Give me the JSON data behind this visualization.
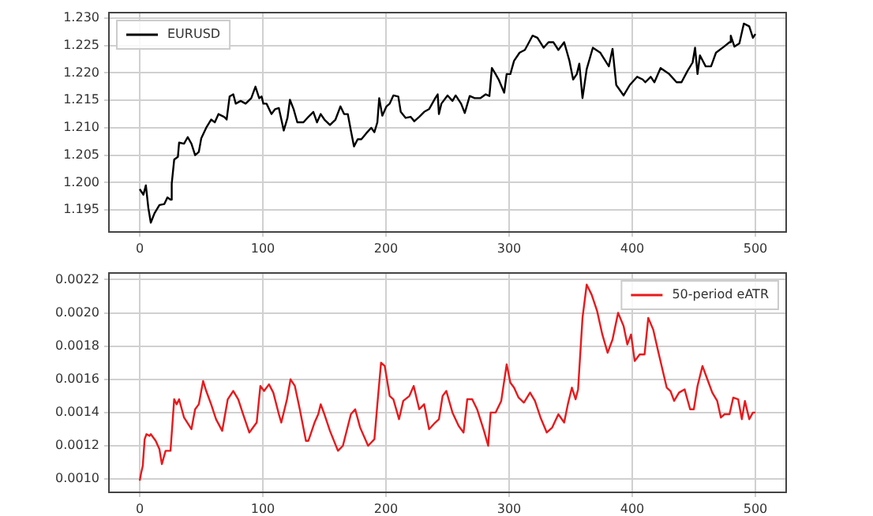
{
  "chart_data": [
    {
      "type": "line",
      "xlim": [
        -25,
        525
      ],
      "xticks": [
        0,
        100,
        200,
        300,
        400,
        500
      ],
      "ylim": [
        1.191,
        1.231
      ],
      "yticks": [
        1.195,
        {
          "value": 1.2,
          "label": "1.200"
        },
        1.205,
        {
          "value": 1.21,
          "label": "1.210"
        },
        1.215,
        {
          "value": 1.22,
          "label": "1.220"
        },
        1.225,
        {
          "value": 1.23,
          "label": "1.230"
        }
      ],
      "grid": true,
      "legend": "top left",
      "line_style": "solid",
      "marker": "none",
      "series": [
        {
          "name": "EURUSD",
          "color": "#000000",
          "x": [
            0,
            3,
            5,
            7,
            9,
            12,
            16,
            20,
            22.5,
            25,
            26,
            28,
            31,
            32,
            36,
            39,
            42,
            45,
            48,
            50,
            54,
            58,
            61,
            64,
            68.5,
            70.6,
            73,
            76,
            78,
            82,
            86,
            90.6,
            94,
            97,
            99,
            100.4,
            103,
            107,
            110,
            113,
            117,
            120,
            122,
            125,
            128,
            133,
            137,
            141,
            144,
            147,
            150,
            154.5,
            159,
            163,
            166,
            169,
            171.5,
            174,
            177,
            180,
            184,
            188,
            190.6,
            193,
            194.5,
            197,
            200.4,
            203,
            206,
            210,
            212,
            216,
            220,
            223,
            227,
            231,
            235,
            240,
            242,
            243,
            245,
            250,
            254,
            256.6,
            261,
            264,
            268,
            272,
            276.6,
            281,
            284,
            286,
            289,
            291.5,
            296,
            298,
            301,
            304,
            308.5,
            312.8,
            315,
            319,
            323,
            328,
            332,
            336,
            340,
            344.7,
            349,
            352,
            355,
            357,
            359.6,
            363,
            368,
            374,
            381,
            384,
            387,
            393,
            398,
            404,
            408.5,
            410.6,
            415,
            418,
            423,
            430,
            436,
            440,
            444.7,
            449,
            451,
            453,
            455,
            459.6,
            464,
            468,
            474.5,
            479,
            480,
            483,
            487,
            490.6,
            495,
            498,
            500
          ],
          "values": [
            1.1988,
            1.1978,
            1.1995,
            1.1954,
            1.1927,
            1.1944,
            1.1959,
            1.1961,
            1.1973,
            1.1969,
            1.1998,
            1.2042,
            1.2047,
            1.2073,
            1.2071,
            1.2083,
            1.2071,
            1.205,
            1.2056,
            1.2081,
            1.21,
            1.2115,
            1.211,
            1.2125,
            1.212,
            1.2115,
            1.2157,
            1.2161,
            1.2144,
            1.2149,
            1.2144,
            1.2154,
            1.2175,
            1.2154,
            1.2157,
            1.2144,
            1.2144,
            1.2125,
            1.2134,
            1.2136,
            1.2095,
            1.2118,
            1.2151,
            1.2134,
            1.211,
            1.211,
            1.212,
            1.2129,
            1.211,
            1.2125,
            1.2115,
            1.2105,
            1.2115,
            1.2139,
            1.2125,
            1.2125,
            1.2095,
            1.2066,
            1.2079,
            1.2079,
            1.209,
            1.21,
            1.2092,
            1.211,
            1.2154,
            1.2122,
            1.2139,
            1.2144,
            1.2159,
            1.2157,
            1.2129,
            1.2118,
            1.212,
            1.2112,
            1.212,
            1.2129,
            1.2134,
            1.2154,
            1.2161,
            1.2125,
            1.2144,
            1.2159,
            1.2149,
            1.2159,
            1.2144,
            1.2127,
            1.2158,
            1.2154,
            1.2154,
            1.2161,
            1.2158,
            1.2209,
            1.2198,
            1.2188,
            1.2164,
            1.2198,
            1.2198,
            1.2222,
            1.2237,
            1.2242,
            1.2251,
            1.2268,
            1.2264,
            1.2246,
            1.2256,
            1.2256,
            1.2242,
            1.2256,
            1.2222,
            1.2188,
            1.2198,
            1.2217,
            1.2154,
            1.2207,
            1.2246,
            1.2237,
            1.2212,
            1.2244,
            1.2178,
            1.2159,
            1.2178,
            1.2193,
            1.2188,
            1.2183,
            1.2193,
            1.2183,
            1.2209,
            1.2198,
            1.2183,
            1.2183,
            1.2203,
            1.2219,
            1.2246,
            1.2198,
            1.2232,
            1.2212,
            1.2212,
            1.2237,
            1.2248,
            1.2256,
            1.2268,
            1.2248,
            1.2254,
            1.229,
            1.2285,
            1.2264,
            1.2271
          ]
        }
      ]
    },
    {
      "type": "line",
      "xlim": [
        -25,
        525
      ],
      "xticks": [
        0,
        100,
        200,
        300,
        400,
        500
      ],
      "ylim": [
        0.00092,
        0.00224
      ],
      "yticks": [
        {
          "value": 0.001,
          "label": "0.0010"
        },
        0.0012,
        0.0014,
        0.0016,
        0.0018,
        {
          "value": 0.002,
          "label": "0.0020"
        },
        0.0022
      ],
      "grid": true,
      "legend": "top right",
      "line_style": "solid",
      "marker": "none",
      "series": [
        {
          "name": "50-period eATR",
          "color": "#e8191c",
          "x": [
            0,
            1,
            2.5,
            4,
            5.5,
            8,
            9,
            13,
            16,
            18,
            21,
            25,
            28,
            30,
            32,
            36,
            42,
            45,
            48,
            51.5,
            54,
            58,
            62,
            67,
            71.5,
            76,
            80,
            84,
            89,
            95,
            98,
            101,
            105,
            108.5,
            113,
            115,
            119.6,
            122.5,
            126,
            130,
            135,
            137,
            142,
            145,
            147,
            150,
            154.5,
            161,
            165,
            171.5,
            175,
            179,
            185.5,
            190.6,
            193,
            196,
            199,
            203,
            206,
            210.6,
            214,
            219,
            222.5,
            227,
            231,
            235,
            240,
            243,
            246,
            249,
            254,
            259,
            263,
            266,
            270,
            274,
            276.6,
            279.6,
            283,
            285,
            289,
            293.6,
            298,
            301,
            304,
            307.7,
            312,
            317,
            321,
            325.5,
            330.6,
            335,
            340,
            344.7,
            347.7,
            351,
            354,
            356,
            359.6,
            363,
            367,
            371.5,
            375.7,
            380,
            384,
            388.5,
            393,
            396,
            399,
            402,
            406,
            410,
            413,
            417,
            421,
            428,
            431,
            434,
            438,
            442.5,
            447,
            450,
            453,
            457,
            461,
            465,
            469,
            472,
            475,
            479,
            482,
            486,
            489,
            491.5,
            495,
            498,
            500
          ],
          "values": [
            0.00099,
            0.00103,
            0.00108,
            0.00124,
            0.00127,
            0.00126,
            0.00127,
            0.00123,
            0.00118,
            0.00109,
            0.00117,
            0.00117,
            0.00148,
            0.00145,
            0.00148,
            0.00137,
            0.0013,
            0.00142,
            0.00145,
            0.00159,
            0.00153,
            0.00145,
            0.00136,
            0.00129,
            0.00148,
            0.00153,
            0.00148,
            0.00139,
            0.00128,
            0.00134,
            0.00156,
            0.00153,
            0.00157,
            0.00152,
            0.00139,
            0.00134,
            0.00148,
            0.0016,
            0.00156,
            0.00142,
            0.00123,
            0.00123,
            0.00134,
            0.00139,
            0.00145,
            0.00139,
            0.00129,
            0.00117,
            0.0012,
            0.00139,
            0.00142,
            0.00131,
            0.0012,
            0.00124,
            0.00145,
            0.0017,
            0.00168,
            0.0015,
            0.00148,
            0.00136,
            0.00147,
            0.0015,
            0.00156,
            0.00142,
            0.00145,
            0.0013,
            0.00134,
            0.00136,
            0.0015,
            0.00153,
            0.0014,
            0.00132,
            0.00128,
            0.00148,
            0.00148,
            0.00142,
            0.00136,
            0.00129,
            0.0012,
            0.0014,
            0.0014,
            0.00147,
            0.00169,
            0.00158,
            0.00155,
            0.00149,
            0.00146,
            0.00152,
            0.00147,
            0.00137,
            0.00128,
            0.00131,
            0.00139,
            0.00134,
            0.00145,
            0.00155,
            0.00148,
            0.00154,
            0.00197,
            0.00217,
            0.00211,
            0.00201,
            0.00187,
            0.00176,
            0.00184,
            0.002,
            0.00192,
            0.00181,
            0.00187,
            0.00171,
            0.00175,
            0.00175,
            0.00197,
            0.0019,
            0.00177,
            0.00155,
            0.00153,
            0.00147,
            0.00152,
            0.00154,
            0.00142,
            0.00142,
            0.00156,
            0.00168,
            0.0016,
            0.00152,
            0.00147,
            0.00137,
            0.00139,
            0.00139,
            0.00149,
            0.00148,
            0.00136,
            0.00147,
            0.00136,
            0.0014,
            0.0014
          ]
        }
      ]
    }
  ]
}
